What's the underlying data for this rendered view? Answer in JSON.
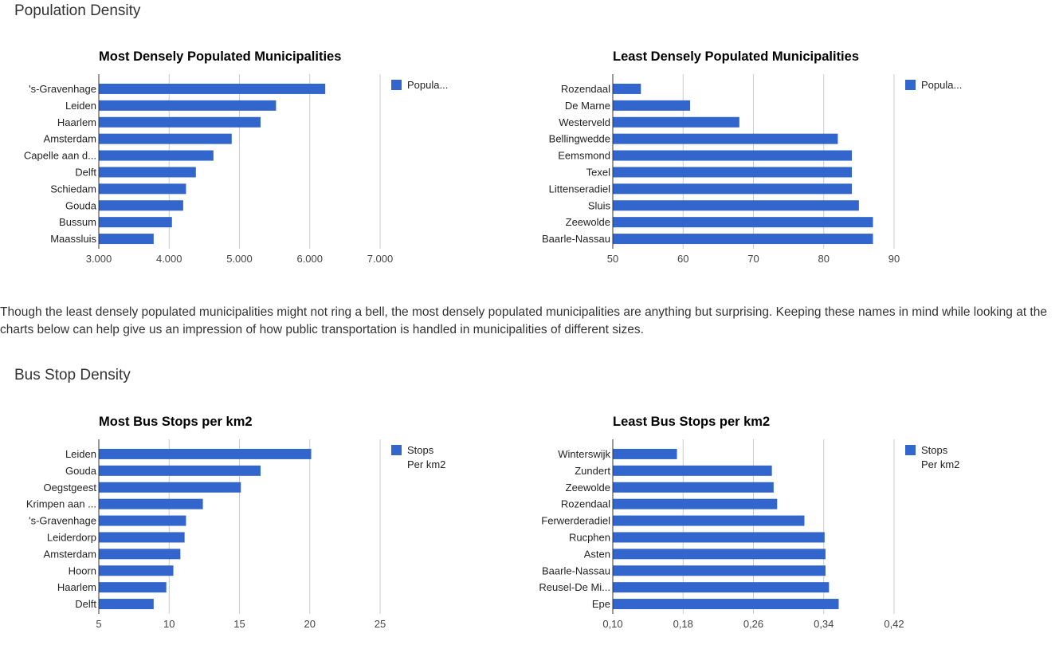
{
  "sections": {
    "population_density_title": "Population Density",
    "bus_stop_density_title": "Bus Stop Density"
  },
  "paragraph": "Though the least densely populated municipalities might not ring a bell, the most densely populated municipalities are anything but surprising. Keeping these names in mind while looking at the charts below can help give us an impression of how public transportation is handled in municipalities of different sizes.",
  "colors": {
    "bar": "#3366cc",
    "grid": "#cccccc",
    "axis": "#333333"
  },
  "chart_data": [
    {
      "type": "bar",
      "orientation": "horizontal",
      "title": "Most Densely Populated Municipalities",
      "categories": [
        "'s-Gravenhage",
        "Leiden",
        "Haarlem",
        "Amsterdam",
        "Capelle aan d...",
        "Delft",
        "Schiedam",
        "Gouda",
        "Bussum",
        "Maassluis"
      ],
      "series": [
        {
          "name": "Popula...",
          "values": [
            6220,
            5520,
            5300,
            4890,
            4630,
            4380,
            4240,
            4200,
            4040,
            3780
          ]
        }
      ],
      "xlim": [
        3000,
        7000
      ],
      "xticks": [
        3000,
        4000,
        5000,
        6000,
        7000
      ],
      "xtick_labels": [
        "3.000",
        "4.000",
        "5.000",
        "6.000",
        "7.000"
      ],
      "grid": true,
      "legend": "right"
    },
    {
      "type": "bar",
      "orientation": "horizontal",
      "title": "Least Densely Populated Municipalities",
      "categories": [
        "Rozendaal",
        "De Marne",
        "Westerveld",
        "Bellingwedde",
        "Eemsmond",
        "Texel",
        "Littenseradiel",
        "Sluis",
        "Zeewolde",
        "Baarle-Nassau"
      ],
      "series": [
        {
          "name": "Popula...",
          "values": [
            54,
            61,
            68,
            82,
            84,
            84,
            84,
            85,
            87,
            87
          ]
        }
      ],
      "xlim": [
        50,
        90
      ],
      "xticks": [
        50,
        60,
        70,
        80,
        90
      ],
      "xtick_labels": [
        "50",
        "60",
        "70",
        "80",
        "90"
      ],
      "grid": true,
      "legend": "right"
    },
    {
      "type": "bar",
      "orientation": "horizontal",
      "title": "Most Bus Stops per km2",
      "categories": [
        "Leiden",
        "Gouda",
        "Oegstgeest",
        "Krimpen aan ...",
        "'s-Gravenhage",
        "Leiderdorp",
        "Amsterdam",
        "Hoorn",
        "Haarlem",
        "Delft"
      ],
      "series": [
        {
          "name": "Stops Per km2",
          "values": [
            20.1,
            16.5,
            15.1,
            12.4,
            11.2,
            11.1,
            10.8,
            10.3,
            9.8,
            8.9
          ]
        }
      ],
      "xlim": [
        5,
        25
      ],
      "xticks": [
        5,
        10,
        15,
        20,
        25
      ],
      "xtick_labels": [
        "5",
        "10",
        "15",
        "20",
        "25"
      ],
      "grid": true,
      "legend": "right"
    },
    {
      "type": "bar",
      "orientation": "horizontal",
      "title": "Least Bus Stops per km2",
      "categories": [
        "Winterswijk",
        "Zundert",
        "Zeewolde",
        "Rozendaal",
        "Ferwerderadiel",
        "Rucphen",
        "Asten",
        "Baarle-Nassau",
        "Reusel-De Mi...",
        "Epe"
      ],
      "series": [
        {
          "name": "Stops Per km2",
          "values": [
            0.173,
            0.281,
            0.283,
            0.287,
            0.318,
            0.341,
            0.342,
            0.342,
            0.346,
            0.357
          ]
        }
      ],
      "xlim": [
        0.1,
        0.42
      ],
      "xticks": [
        0.1,
        0.18,
        0.26,
        0.34,
        0.42
      ],
      "xtick_labels": [
        "0,10",
        "0,18",
        "0,26",
        "0,34",
        "0,42"
      ],
      "grid": true,
      "legend": "right"
    }
  ]
}
